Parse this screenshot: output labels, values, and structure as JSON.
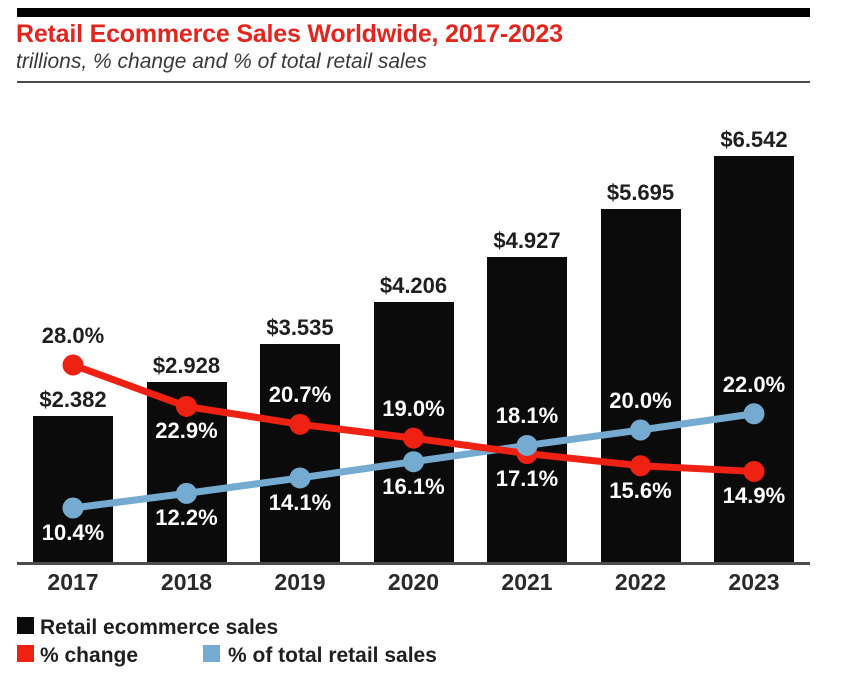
{
  "header": {
    "title": "Retail Ecommerce Sales Worldwide, 2017-2023",
    "subtitle": "trillions, % change and % of total retail sales"
  },
  "colors": {
    "bar": "#0b0b0b",
    "red": "#ee2113",
    "blue": "#75abd0",
    "title_red": "#e3261d",
    "dark_text": "#1f1f1f",
    "white_text": "#ffffff",
    "axis": "#4d4d4d"
  },
  "chart_data": {
    "type": "bar",
    "subtype": "combo-bar-and-lines",
    "title": "Retail Ecommerce Sales Worldwide, 2017-2023",
    "subtitle": "trillions, % change and % of of total retail sales",
    "categories": [
      "2017",
      "2018",
      "2019",
      "2020",
      "2021",
      "2022",
      "2023"
    ],
    "series": [
      {
        "name": "Retail ecommerce sales",
        "type": "bar",
        "unit": "USD trillions",
        "values": [
          2.382,
          2.928,
          3.535,
          4.206,
          4.927,
          5.695,
          6.542
        ],
        "labels": [
          "$2.382",
          "$2.928",
          "$3.535",
          "$4.206",
          "$4.927",
          "$5.695",
          "$6.542"
        ]
      },
      {
        "name": "% change",
        "type": "line",
        "unit": "percent",
        "values": [
          28.0,
          22.9,
          20.7,
          19.0,
          17.1,
          15.6,
          14.9
        ],
        "labels": [
          "28.0%",
          "22.9%",
          "20.7%",
          "19.0%",
          "17.1%",
          "15.6%",
          "14.9%"
        ]
      },
      {
        "name": "% of total retail sales",
        "type": "line",
        "unit": "percent",
        "values": [
          10.4,
          12.2,
          14.1,
          16.1,
          18.1,
          20.0,
          22.0
        ],
        "labels": [
          "10.4%",
          "12.2%",
          "14.1%",
          "16.1%",
          "18.1%",
          "20.0%",
          "22.0%"
        ]
      }
    ],
    "bar_axis": {
      "min": 0,
      "max_shown_by_tallest_bar": 6.542,
      "gridlines": false,
      "tick_labels": false
    },
    "pct_axis": {
      "gridlines": false,
      "tick_labels": false,
      "note": "values shown as data labels only"
    },
    "legend_position": "bottom-left"
  },
  "legend": [
    {
      "label": "Retail ecommerce sales",
      "swatch": "#0b0b0b"
    },
    {
      "label": "% change",
      "swatch": "#ee2113"
    },
    {
      "label": "% of total retail sales",
      "swatch": "#75abd0"
    }
  ]
}
